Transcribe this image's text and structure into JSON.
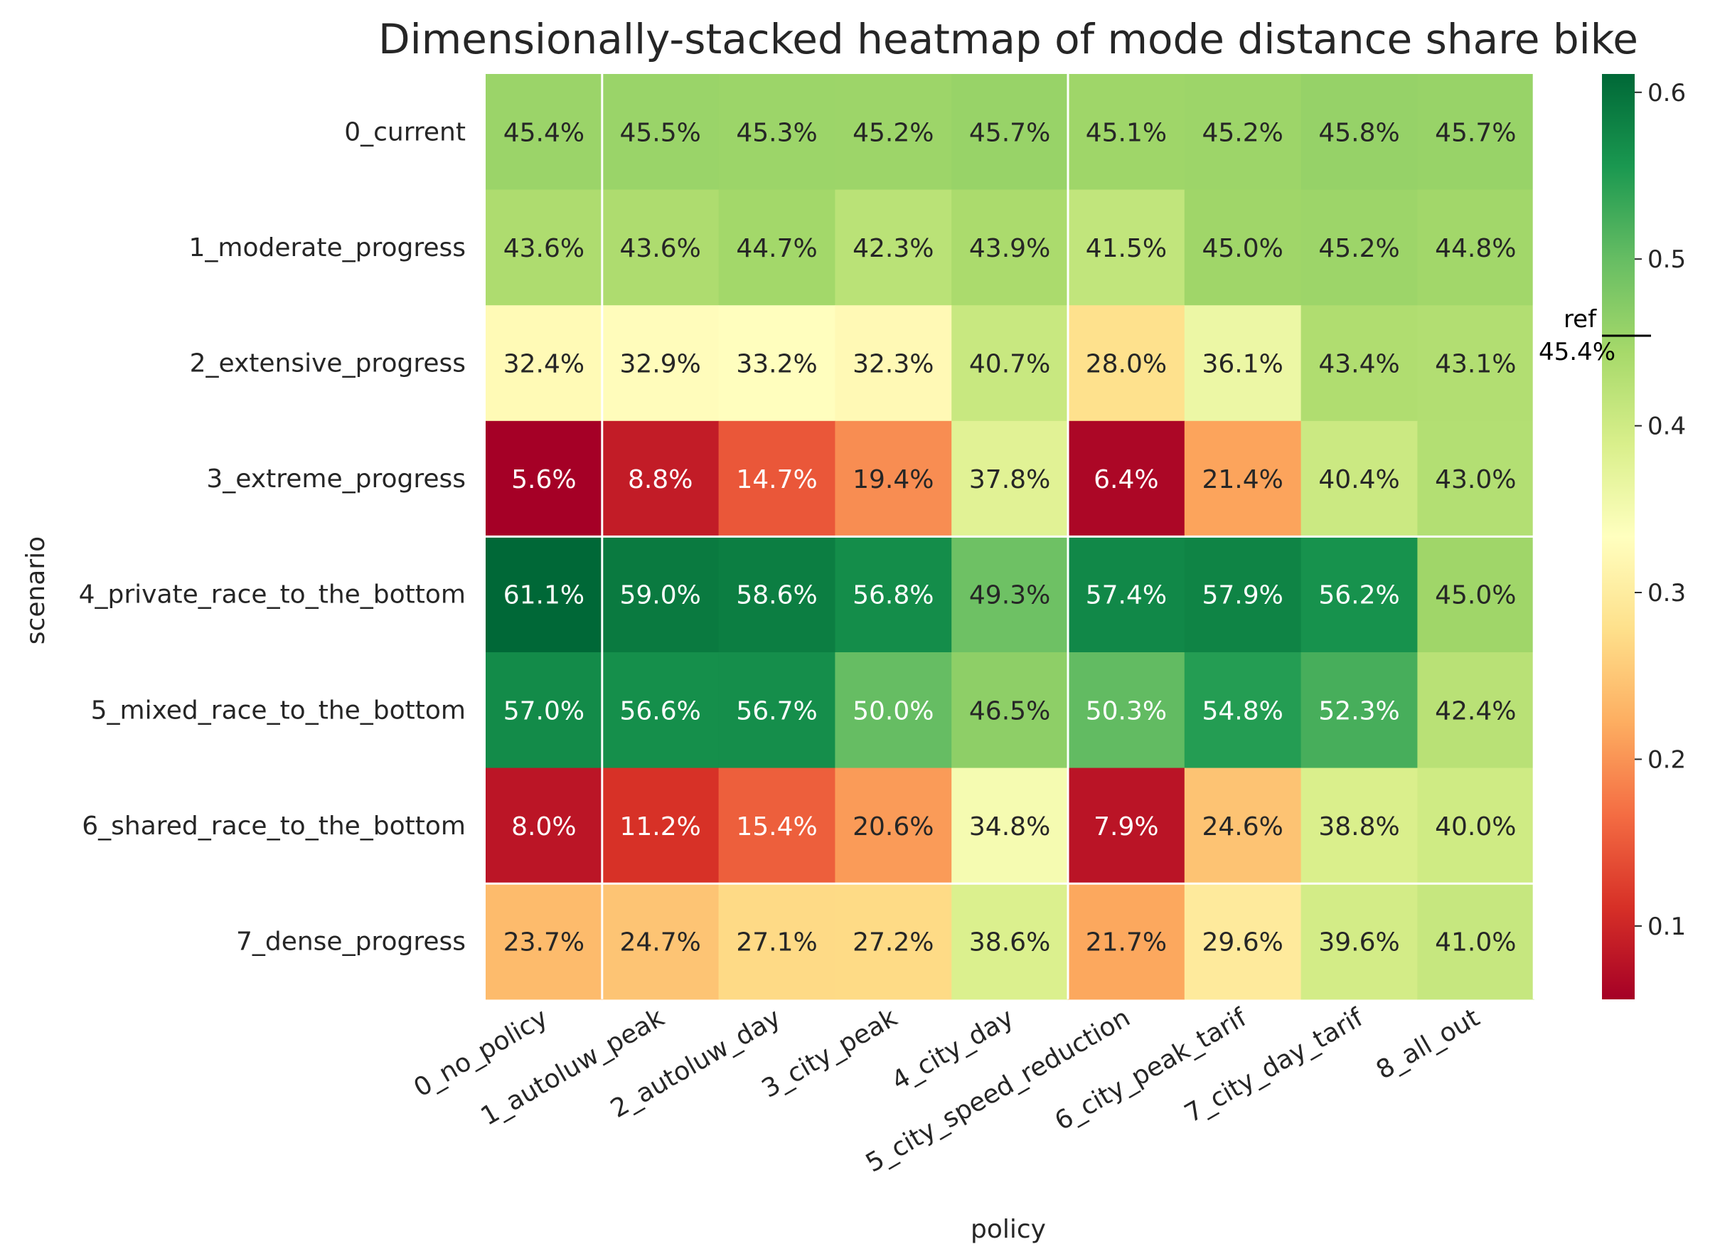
{
  "chart_data": {
    "type": "heatmap",
    "title": "Dimensionally-stacked heatmap of mode distance share bike",
    "xlabel": "policy",
    "ylabel": "scenario",
    "x_categories": [
      "0_no_policy",
      "1_autoluw_peak",
      "2_autoluw_day",
      "3_city_peak",
      "4_city_day",
      "5_city_speed_reduction",
      "6_city_peak_tarif",
      "7_city_day_tarif",
      "8_all_out"
    ],
    "y_categories": [
      "0_current",
      "1_moderate_progress",
      "2_extensive_progress",
      "3_extreme_progress",
      "4_private_race_to_the_bottom",
      "5_mixed_race_to_the_bottom",
      "6_shared_race_to_the_bottom",
      "7_dense_progress"
    ],
    "values": [
      [
        0.454,
        0.455,
        0.453,
        0.452,
        0.457,
        0.451,
        0.452,
        0.458,
        0.457
      ],
      [
        0.436,
        0.436,
        0.447,
        0.423,
        0.439,
        0.415,
        0.45,
        0.452,
        0.448
      ],
      [
        0.324,
        0.329,
        0.332,
        0.323,
        0.407,
        0.28,
        0.361,
        0.434,
        0.431
      ],
      [
        0.056,
        0.088,
        0.147,
        0.194,
        0.378,
        0.064,
        0.214,
        0.404,
        0.43
      ],
      [
        0.611,
        0.59,
        0.586,
        0.568,
        0.493,
        0.574,
        0.579,
        0.562,
        0.45
      ],
      [
        0.57,
        0.566,
        0.567,
        0.5,
        0.465,
        0.503,
        0.548,
        0.523,
        0.424
      ],
      [
        0.08,
        0.112,
        0.154,
        0.206,
        0.348,
        0.079,
        0.246,
        0.388,
        0.4
      ],
      [
        0.237,
        0.247,
        0.271,
        0.272,
        0.386,
        0.217,
        0.296,
        0.396,
        0.41
      ]
    ],
    "cell_labels": [
      [
        "45.4%",
        "45.5%",
        "45.3%",
        "45.2%",
        "45.7%",
        "45.1%",
        "45.2%",
        "45.8%",
        "45.7%"
      ],
      [
        "43.6%",
        "43.6%",
        "44.7%",
        "42.3%",
        "43.9%",
        "41.5%",
        "45.0%",
        "45.2%",
        "44.8%"
      ],
      [
        "32.4%",
        "32.9%",
        "33.2%",
        "32.3%",
        "40.7%",
        "28.0%",
        "36.1%",
        "43.4%",
        "43.1%"
      ],
      [
        "5.6%",
        "8.8%",
        "14.7%",
        "19.4%",
        "37.8%",
        "6.4%",
        "21.4%",
        "40.4%",
        "43.0%"
      ],
      [
        "61.1%",
        "59.0%",
        "58.6%",
        "56.8%",
        "49.3%",
        "57.4%",
        "57.9%",
        "56.2%",
        "45.0%"
      ],
      [
        "57.0%",
        "56.6%",
        "56.7%",
        "50.0%",
        "46.5%",
        "50.3%",
        "54.8%",
        "52.3%",
        "42.4%"
      ],
      [
        "8.0%",
        "11.2%",
        "15.4%",
        "20.6%",
        "34.8%",
        "7.9%",
        "24.6%",
        "38.8%",
        "40.0%"
      ],
      [
        "23.7%",
        "24.7%",
        "27.1%",
        "27.2%",
        "38.6%",
        "21.7%",
        "29.6%",
        "39.6%",
        "41.0%"
      ]
    ],
    "colormap": "RdYlGn",
    "vmin": 0.056,
    "vmax": 0.611,
    "colorbar_ticks": [
      0.1,
      0.2,
      0.3,
      0.4,
      0.5,
      0.6
    ],
    "colorbar_tick_labels": [
      "0.1",
      "0.2",
      "0.3",
      "0.4",
      "0.5",
      "0.6"
    ],
    "reference": {
      "label": "ref",
      "value": 0.454,
      "value_label": "45.4%"
    },
    "group_separators_after_columns": [
      0,
      4,
      8
    ],
    "group_separators_after_rows": [
      3,
      6
    ]
  }
}
